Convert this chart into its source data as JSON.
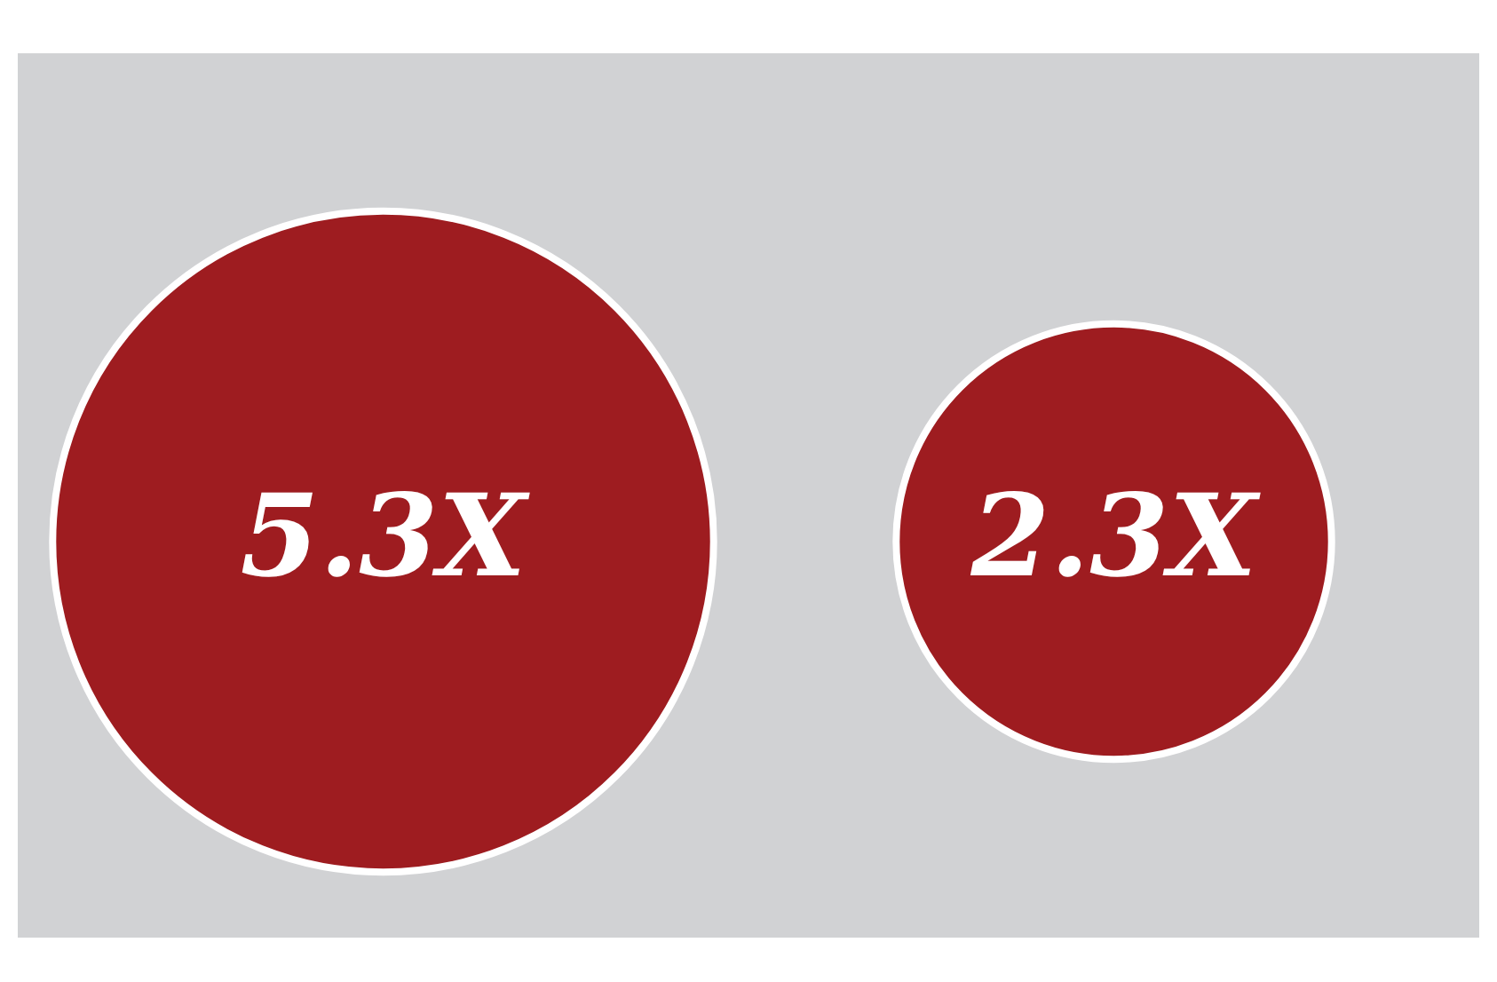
{
  "chart_data": {
    "type": "other",
    "categories": [
      null,
      null
    ],
    "values": [
      5.3,
      2.3
    ],
    "value_labels": [
      "5.3X",
      "2.3X"
    ],
    "color": "#9e1c20"
  }
}
